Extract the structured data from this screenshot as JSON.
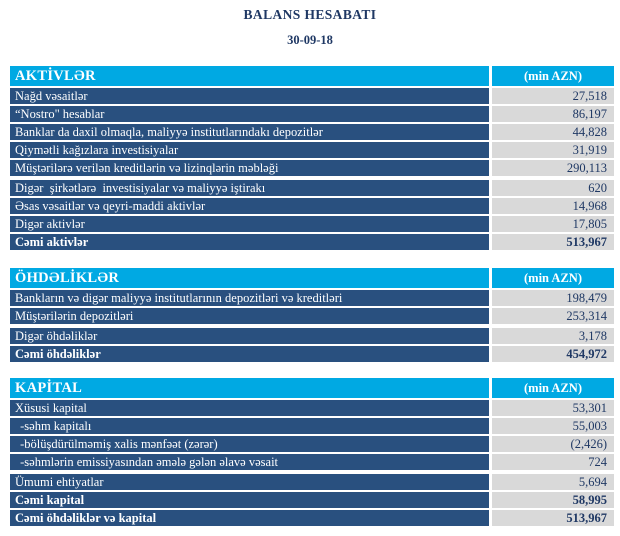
{
  "title": "BALANS HESABATI",
  "date": "30-09-18",
  "unit_label": "(min AZN)",
  "colors": {
    "section_header_blue": "#00A9E3",
    "row_navy": "#29507F",
    "value_cell_gray": "#D9D9D9",
    "text_navy": "#1F3864"
  },
  "sections": [
    {
      "name": "AKTİVLƏR",
      "rows": [
        {
          "label": "Nağd vəsaitlər",
          "value": "27,518"
        },
        {
          "label": "“Nostro\" hesablar",
          "value": "86,197"
        },
        {
          "label": "Banklar da daxil olmaqla, maliyyə institutlarındakı depozitlər",
          "value": "44,828"
        },
        {
          "label": "Qiymətli kağızlara investisiyalar",
          "value": "31,919"
        },
        {
          "label": "Müştərilərə verilən kreditlərin və lizinqlərin məbləği",
          "value": "290,113"
        },
        {
          "label": "Digər  şirkətlərə  investisiyalar və maliyyə iştirakı",
          "value": "620"
        },
        {
          "label": "Əsas vəsaitlər və qeyri-maddi aktivlər",
          "value": "14,968"
        },
        {
          "label": "Digər aktivlər",
          "value": "17,805"
        },
        {
          "label": "Cəmi aktivlər",
          "value": "513,967"
        }
      ]
    },
    {
      "name": "ÖHDƏLİKLƏR",
      "rows": [
        {
          "label": "Bankların və digər maliyyə institutlarının depozitləri və kreditləri",
          "value": "198,479"
        },
        {
          "label": "Müştərilərin depozitləri",
          "value": "253,314"
        },
        {
          "label": "Digər öhdəliklər",
          "value": "3,178"
        },
        {
          "label": "Cəmi öhdəliklər",
          "value": "454,972"
        }
      ]
    },
    {
      "name": "KAPİTAL",
      "rows": [
        {
          "label": "Xüsusi kapital",
          "value": "53,301"
        },
        {
          "label": " -səhm kapitalı",
          "value": "55,003"
        },
        {
          "label": " -bölüşdürülməmiş xalis mənfəət (zərər)",
          "value": "(2,426)"
        },
        {
          "label": " -səhmlərin emissiyasından əmələ gələn əlavə vəsait",
          "value": "724"
        },
        {
          "label": "Ümumi ehtiyatlar",
          "value": "5,694"
        },
        {
          "label": "Cəmi kapital",
          "value": "58,995"
        },
        {
          "label": "Cəmi öhdəliklər və kapital",
          "value": "513,967"
        }
      ]
    }
  ]
}
